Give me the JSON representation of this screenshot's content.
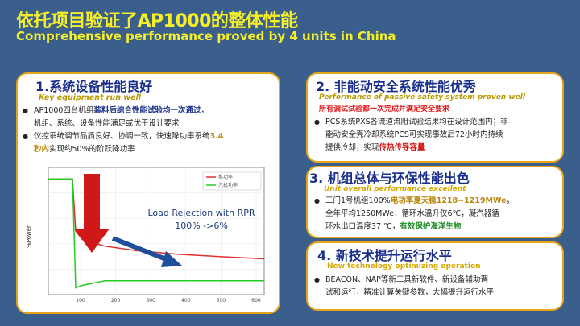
{
  "header": {
    "title_cn": "依托项目验证了AP1000的整体性能",
    "title_en": "Comprehensive performance proved by 4 units  in China"
  },
  "panel1": {
    "title_cn": "1.系统设备性能良好",
    "title_en": "Key equipment run well",
    "b1_a": "AP1000四台机组",
    "b1_b": "装料后综合性能试验均一次通过",
    "b1_c": "，",
    "b1_d": "机组、系统、设备性能满足或优于设计要求",
    "b2_a": "仪控系统调节品质良好、协调一致，快速降功率系统",
    "b2_b": "3.4",
    "b2_c": "秒内",
    "b2_d": "实现约50%的阶跃降功率"
  },
  "chart": {
    "ylabel": "%Power",
    "legend": [
      "堆功率",
      "汽机功率"
    ],
    "x_ticks": [
      "100",
      "200",
      "300",
      "400",
      "500",
      "600"
    ],
    "caption_line1": "Load Rejection with RPR",
    "caption_line2": "100% ->6%",
    "colors": {
      "reactor": "#e03030",
      "turbine": "#22cc22",
      "arrow_down": "#d01818",
      "arrow_diag": "#1f4e9c"
    }
  },
  "chart_data": {
    "type": "line",
    "ylabel": "%Power",
    "x_ticks": [
      100,
      200,
      300,
      400,
      500,
      600
    ],
    "series": [
      {
        "name": "堆功率",
        "values": [
          100,
          100,
          55,
          48,
          42,
          38,
          35,
          33,
          31
        ]
      },
      {
        "name": "汽机功率",
        "values": [
          100,
          100,
          6,
          8,
          12,
          12,
          12,
          12,
          12
        ]
      }
    ]
  },
  "panel2": {
    "title_cn": "2. 非能动安全系统性能优秀",
    "title_en": "Performance of passive  safety system proven well",
    "subtitle": "所有调试试验都一次完成并满足安全要求",
    "b1_a": "PCS系统PXS各流道流阻试验结果均在设计范围内；非",
    "b1_b": "能动安全壳冷却系统PCS可实现事故后72小时内持续",
    "b1_c": "提供冷却，实现",
    "b1_d": "传热传导容量"
  },
  "panel3": {
    "title_cn": "3. 机组总体与环保性能出色",
    "title_en": "Unit  overall performance excellent",
    "b1_a": "三门1号机组100%",
    "b1_b": "电功率夏天稳1218~1219MWe",
    "b1_c": "，",
    "b1_d": "全年平均1250MWe；循环水温升仅6℃，凝汽器循",
    "b1_e": "环水出口温度37 ℃，",
    "b1_f": "有效保护海洋生物"
  },
  "panel4": {
    "title_cn": "4. 新技术提升运行水平",
    "title_en": "New technology optimizing operation",
    "b1_a": "BEACON、NAP等新工具新软件、新设备辅助调",
    "b1_b": "试和运行，精准计算关键参数，大幅提升运行水平"
  }
}
